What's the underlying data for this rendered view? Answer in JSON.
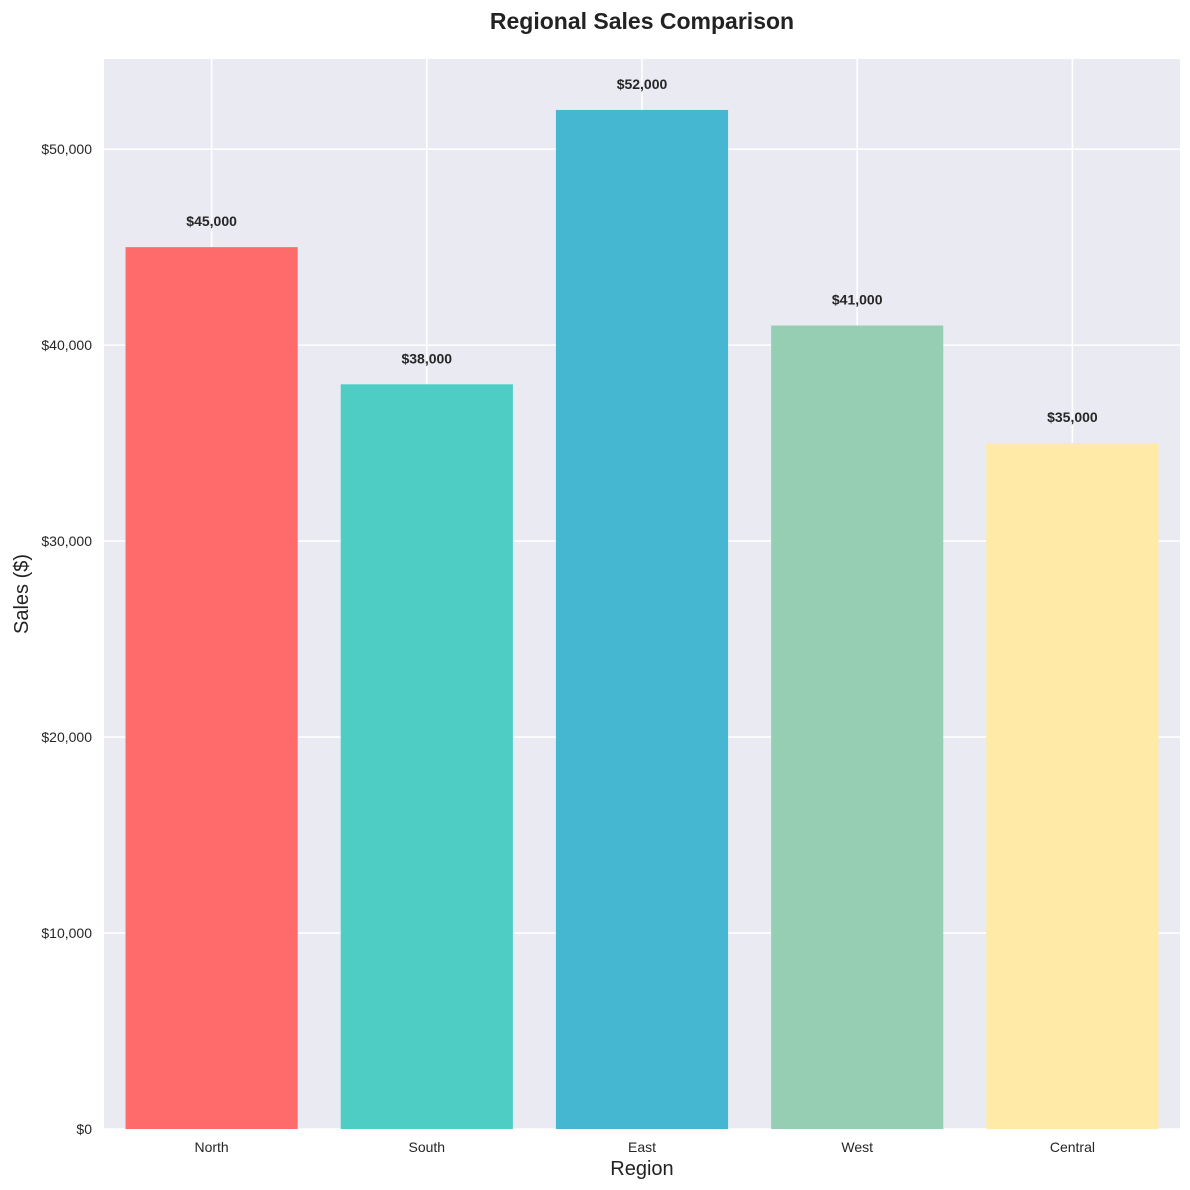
{
  "chart_data": {
    "type": "bar",
    "title": "Regional Sales Comparison",
    "xlabel": "Region",
    "ylabel": "Sales ($)",
    "categories": [
      "North",
      "South",
      "East",
      "West",
      "Central"
    ],
    "values": [
      45000,
      38000,
      52000,
      41000,
      35000
    ],
    "value_labels": [
      "$45,000",
      "$38,000",
      "$52,000",
      "$41,000",
      "$35,000"
    ],
    "colors": [
      "#ff6b6b",
      "#4ecdc4",
      "#45b7d1",
      "#96ceb4",
      "#ffeaa7"
    ],
    "ylim": [
      0,
      54600
    ],
    "yticks": [
      0,
      10000,
      20000,
      30000,
      40000,
      50000
    ],
    "ytick_labels": [
      "$0",
      "$10,000",
      "$20,000",
      "$30,000",
      "$40,000",
      "$50,000"
    ],
    "grid": true,
    "background": "#eaeaf2",
    "grid_color": "#ffffff"
  }
}
